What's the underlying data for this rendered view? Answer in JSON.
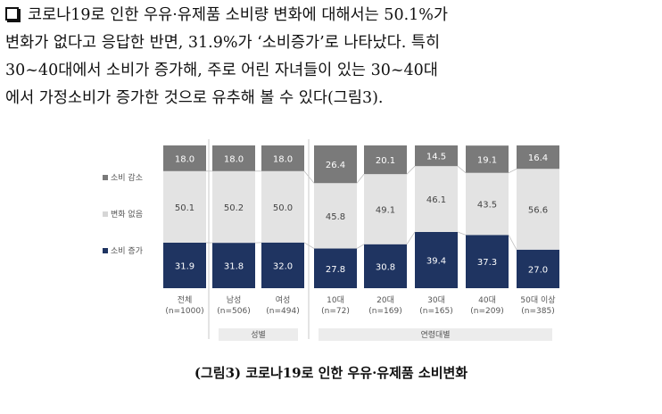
{
  "paragraph": {
    "lines": [
      "코로나19로 인한 우유·유제품 소비량 변화에 대해서는 50.1%가",
      "변화가 없다고 응답한 반면, 31.9%가 ‘소비증가’로 나타났다. 특히",
      "30~40대에서 소비가 증가해, 주로 어린 자녀들이 있는 30~40대",
      "에서 가정소비가 증가한 것으로 유추해 볼 수 있다(그림3)."
    ]
  },
  "chart_data": {
    "type": "bar",
    "stacked": true,
    "normalized_percent": true,
    "categories": [
      "전체",
      "남성",
      "여성",
      "10대",
      "20대",
      "30대",
      "40대",
      "50대 이상"
    ],
    "category_sublabels": [
      "(n=1000)",
      "(n=506)",
      "(n=494)",
      "(n=72)",
      "(n=169)",
      "(n=165)",
      "(n=209)",
      "(n=385)"
    ],
    "series": [
      {
        "name": "소비 증가",
        "color": "#1f3461",
        "values": [
          31.9,
          31.8,
          32.0,
          27.8,
          30.8,
          39.4,
          37.3,
          27.0
        ]
      },
      {
        "name": "변화 없음",
        "color": "#e3e3e3",
        "values": [
          50.1,
          50.2,
          50.0,
          45.8,
          49.1,
          46.1,
          43.5,
          56.6
        ]
      },
      {
        "name": "소비 감소",
        "color": "#7a7a7a",
        "values": [
          18.0,
          18.0,
          18.0,
          26.4,
          20.1,
          14.5,
          19.1,
          16.4
        ]
      }
    ],
    "value_labels": [
      [
        "31.9",
        "31.8",
        "32.0",
        "27.8",
        "30.8",
        "39.4",
        "37.3",
        "27.0"
      ],
      [
        "50.1",
        "50.2",
        "50.0",
        "45.8",
        "49.1",
        "46.1",
        "43.5",
        "56.6"
      ],
      [
        "18.0",
        "18.0",
        "18.0",
        "26.4",
        "20.1",
        "14.5",
        "19.1",
        "16.4"
      ]
    ],
    "legend_order": [
      "소비 감소",
      "변화 없음",
      "소비 증가"
    ],
    "legend_placement": "left",
    "groups": [
      {
        "label": "성별",
        "categories": [
          "남성",
          "여성"
        ]
      },
      {
        "label": "연령대별",
        "categories": [
          "10대",
          "20대",
          "30대",
          "40대",
          "50대 이상"
        ]
      }
    ],
    "grid": false
  },
  "caption": "(그림3) 코로나19로 인한 우유·유제품 소비변화"
}
